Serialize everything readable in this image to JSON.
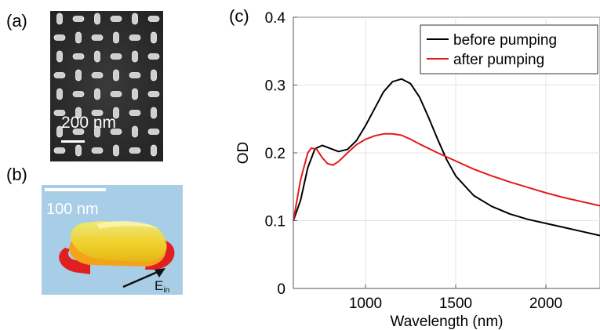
{
  "panels": {
    "a": {
      "label": "(a)",
      "scale_bar": "200 nm"
    },
    "b": {
      "label": "(b)",
      "scale_bar": "100 nm",
      "field_label_main": "E",
      "field_label_sub": "in"
    },
    "c": {
      "label": "(c)"
    }
  },
  "colors": {
    "before": "#000000",
    "after": "#e31a1c",
    "rod_gold": "#f2d21e",
    "rod_hotspot": "#e02020",
    "background_blue": "#a8cde6"
  },
  "chart_data": {
    "type": "line",
    "xlabel": "Wavelength (nm)",
    "ylabel": "OD",
    "xlim": [
      600,
      2300
    ],
    "ylim": [
      0,
      0.4
    ],
    "xticks": [
      1000,
      1500,
      2000
    ],
    "yticks": [
      0,
      0.1,
      0.2,
      0.3,
      0.4
    ],
    "xtick_labels": [
      "1000",
      "1500",
      "2000"
    ],
    "ytick_labels": [
      "0",
      "0.1",
      "0.2",
      "0.3",
      "0.4"
    ],
    "grid": true,
    "legend_position": "top-right",
    "series": [
      {
        "name": "before pumping",
        "color": "#000000",
        "x": [
          600,
          640,
          680,
          720,
          760,
          800,
          850,
          900,
          950,
          1000,
          1050,
          1100,
          1150,
          1200,
          1250,
          1300,
          1350,
          1400,
          1450,
          1500,
          1600,
          1700,
          1800,
          1900,
          2000,
          2100,
          2200,
          2300
        ],
        "y": [
          0.1,
          0.13,
          0.178,
          0.206,
          0.211,
          0.207,
          0.202,
          0.205,
          0.218,
          0.24,
          0.265,
          0.29,
          0.305,
          0.309,
          0.302,
          0.282,
          0.252,
          0.22,
          0.19,
          0.166,
          0.137,
          0.121,
          0.11,
          0.102,
          0.096,
          0.09,
          0.084,
          0.078
        ]
      },
      {
        "name": "after pumping",
        "color": "#e31a1c",
        "x": [
          600,
          640,
          680,
          700,
          730,
          760,
          790,
          820,
          850,
          900,
          950,
          1000,
          1050,
          1100,
          1150,
          1200,
          1250,
          1300,
          1400,
          1500,
          1600,
          1700,
          1800,
          1900,
          2000,
          2100,
          2200,
          2300
        ],
        "y": [
          0.1,
          0.16,
          0.2,
          0.207,
          0.205,
          0.193,
          0.184,
          0.182,
          0.187,
          0.2,
          0.212,
          0.22,
          0.225,
          0.228,
          0.228,
          0.226,
          0.22,
          0.213,
          0.2,
          0.188,
          0.176,
          0.166,
          0.157,
          0.149,
          0.141,
          0.134,
          0.128,
          0.122
        ]
      }
    ]
  }
}
